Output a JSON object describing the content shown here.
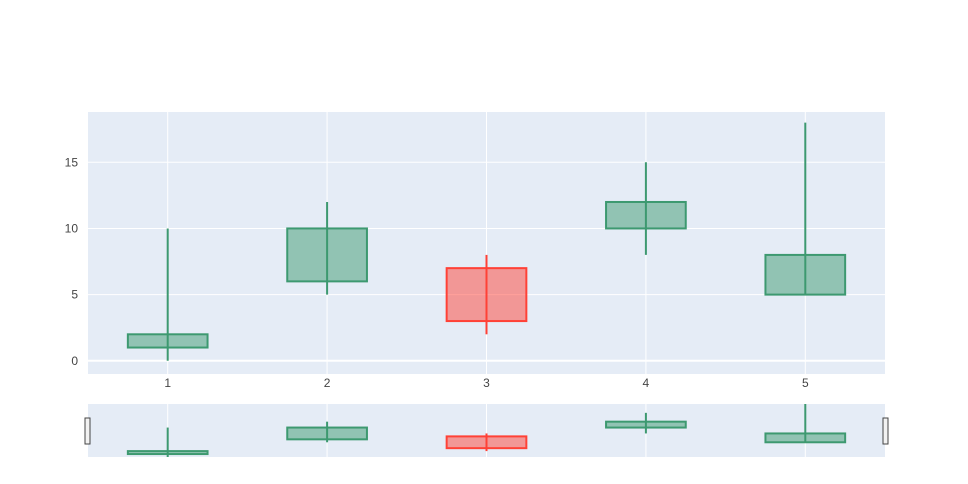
{
  "chart_data": {
    "type": "candlestick",
    "x": [
      "1",
      "2",
      "3",
      "4",
      "5"
    ],
    "open": [
      1,
      6,
      7,
      10,
      5
    ],
    "high": [
      10,
      12,
      8,
      15,
      18
    ],
    "low": [
      0,
      5,
      2,
      8,
      5
    ],
    "close": [
      2,
      10,
      3,
      12,
      8
    ],
    "y_ticks": [
      "0",
      "5",
      "10",
      "15"
    ],
    "ylim": [
      -1,
      18.8
    ],
    "grid": true,
    "rangeslider": true,
    "colors": {
      "increasing_line": "#3D9970",
      "increasing_fill": "rgba(61,153,112,0.5)",
      "decreasing_line": "#FF4136",
      "decreasing_fill": "rgba(255,65,54,0.5)",
      "plot_bg": "#E5ECF6",
      "grid": "#FFFFFF"
    }
  }
}
